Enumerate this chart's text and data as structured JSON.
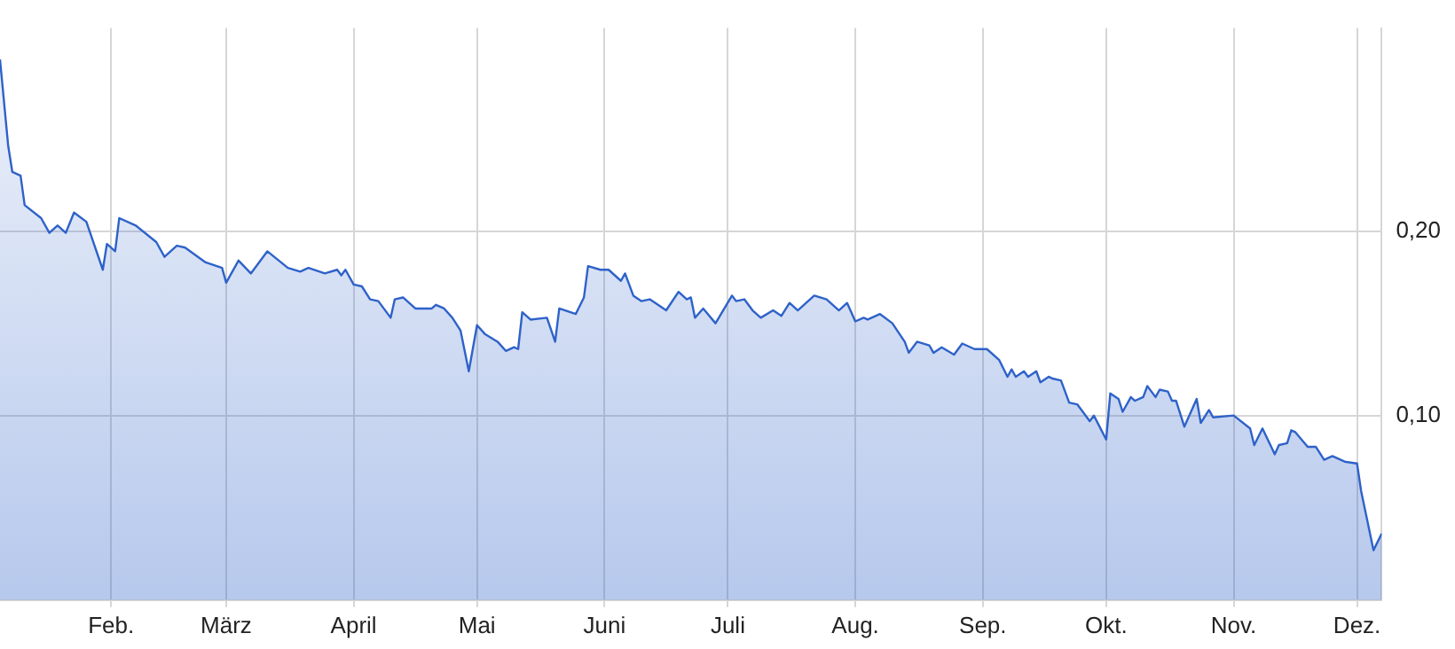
{
  "chart_data": {
    "type": "area",
    "x": [
      "--01-05",
      "--01-07",
      "--01-08",
      "--01-10",
      "--01-11",
      "--01-15",
      "--01-17",
      "--01-19",
      "--01-21",
      "--01-23",
      "--01-26",
      "--01-30",
      "--01-31",
      "--02-02",
      "--02-03",
      "--02-07",
      "--02-12",
      "--02-14",
      "--02-17",
      "--02-19",
      "--02-24",
      "--02-28",
      "--03-01",
      "--03-04",
      "--03-07",
      "--03-09",
      "--03-11",
      "--03-16",
      "--03-19",
      "--03-21",
      "--03-25",
      "--03-28",
      "--03-29",
      "--03-30",
      "--04-01",
      "--04-03",
      "--04-05",
      "--04-07",
      "--04-10",
      "--04-11",
      "--04-13",
      "--04-16",
      "--04-20",
      "--04-21",
      "--04-23",
      "--04-25",
      "--04-27",
      "--04-29",
      "--05-01",
      "--05-03",
      "--05-06",
      "--05-08",
      "--05-10",
      "--05-11",
      "--05-12",
      "--05-14",
      "--05-18",
      "--05-20",
      "--05-21",
      "--05-25",
      "--05-27",
      "--05-28",
      "--05-31",
      "--06-02",
      "--06-05",
      "--06-06",
      "--06-08",
      "--06-10",
      "--06-12",
      "--06-16",
      "--06-19",
      "--06-21",
      "--06-22",
      "--06-23",
      "--06-25",
      "--06-28",
      "--07-02",
      "--07-03",
      "--07-05",
      "--07-07",
      "--07-09",
      "--07-12",
      "--07-14",
      "--07-16",
      "--07-18",
      "--07-22",
      "--07-25",
      "--07-28",
      "--07-30",
      "--08-01",
      "--08-03",
      "--08-04",
      "--08-07",
      "--08-10",
      "--08-13",
      "--08-14",
      "--08-16",
      "--08-19",
      "--08-20",
      "--08-22",
      "--08-25",
      "--08-27",
      "--08-30",
      "--09-02",
      "--09-05",
      "--09-07",
      "--09-08",
      "--09-09",
      "--09-11",
      "--09-12",
      "--09-14",
      "--09-15",
      "--09-17",
      "--09-18",
      "--09-20",
      "--09-22",
      "--09-24",
      "--09-25",
      "--09-27",
      "--09-28",
      "--10-01",
      "--10-02",
      "--10-04",
      "--10-05",
      "--10-07",
      "--10-08",
      "--10-10",
      "--10-11",
      "--10-13",
      "--10-14",
      "--10-16",
      "--10-17",
      "--10-18",
      "--10-20",
      "--10-23",
      "--10-24",
      "--10-26",
      "--10-27",
      "--11-01",
      "--11-05",
      "--11-06",
      "--11-08",
      "--11-11",
      "--11-12",
      "--11-14",
      "--11-15",
      "--11-16",
      "--11-19",
      "--11-21",
      "--11-23",
      "--11-25",
      "--11-28",
      "--12-01",
      "--12-02",
      "--12-05",
      "--12-07"
    ],
    "series": [
      {
        "color": "#2e62c9",
        "values": [
          0.293,
          0.246,
          0.232,
          0.23,
          0.214,
          0.207,
          0.199,
          0.203,
          0.199,
          0.21,
          0.205,
          0.179,
          0.193,
          0.189,
          0.207,
          0.203,
          0.194,
          0.186,
          0.192,
          0.191,
          0.183,
          0.18,
          0.172,
          0.184,
          0.177,
          0.183,
          0.189,
          0.18,
          0.178,
          0.18,
          0.177,
          0.179,
          0.176,
          0.179,
          0.171,
          0.17,
          0.163,
          0.162,
          0.153,
          0.163,
          0.164,
          0.158,
          0.158,
          0.16,
          0.158,
          0.153,
          0.146,
          0.124,
          0.149,
          0.144,
          0.14,
          0.135,
          0.137,
          0.136,
          0.156,
          0.152,
          0.153,
          0.14,
          0.158,
          0.155,
          0.164,
          0.181,
          0.179,
          0.179,
          0.173,
          0.177,
          0.165,
          0.162,
          0.163,
          0.157,
          0.167,
          0.163,
          0.164,
          0.153,
          0.158,
          0.15,
          0.165,
          0.162,
          0.163,
          0.157,
          0.153,
          0.157,
          0.154,
          0.161,
          0.157,
          0.165,
          0.163,
          0.157,
          0.161,
          0.151,
          0.153,
          0.152,
          0.155,
          0.15,
          0.14,
          0.134,
          0.14,
          0.138,
          0.134,
          0.137,
          0.133,
          0.139,
          0.136,
          0.136,
          0.13,
          0.121,
          0.125,
          0.121,
          0.124,
          0.121,
          0.124,
          0.118,
          0.121,
          0.12,
          0.119,
          0.107,
          0.106,
          0.103,
          0.097,
          0.1,
          0.087,
          0.112,
          0.109,
          0.102,
          0.11,
          0.108,
          0.11,
          0.116,
          0.11,
          0.114,
          0.113,
          0.108,
          0.108,
          0.094,
          0.109,
          0.096,
          0.103,
          0.099,
          0.1,
          0.093,
          0.084,
          0.093,
          0.079,
          0.084,
          0.085,
          0.092,
          0.091,
          0.083,
          0.083,
          0.076,
          0.078,
          0.075,
          0.074,
          0.059,
          0.027,
          0.036
        ]
      }
    ],
    "xlim": [
      "--01-05",
      "--12-07"
    ],
    "xticks": [
      {
        "value": "--02-01",
        "label": "Feb."
      },
      {
        "value": "--03-01",
        "label": "März"
      },
      {
        "value": "--04-01",
        "label": "April"
      },
      {
        "value": "--05-01",
        "label": "Mai"
      },
      {
        "value": "--06-01",
        "label": "Juni"
      },
      {
        "value": "--07-01",
        "label": "Juli"
      },
      {
        "value": "--08-01",
        "label": "Aug."
      },
      {
        "value": "--09-01",
        "label": "Sep."
      },
      {
        "value": "--10-01",
        "label": "Okt."
      },
      {
        "value": "--11-01",
        "label": "Nov."
      },
      {
        "value": "--12-01",
        "label": "Dez."
      }
    ],
    "ylim": [
      0,
      0.31
    ],
    "yticks": [
      {
        "value": 0.1,
        "label": "0,10"
      },
      {
        "value": 0.2,
        "label": "0,20"
      }
    ],
    "grid": true,
    "marker": "none",
    "line_style": "solid"
  }
}
